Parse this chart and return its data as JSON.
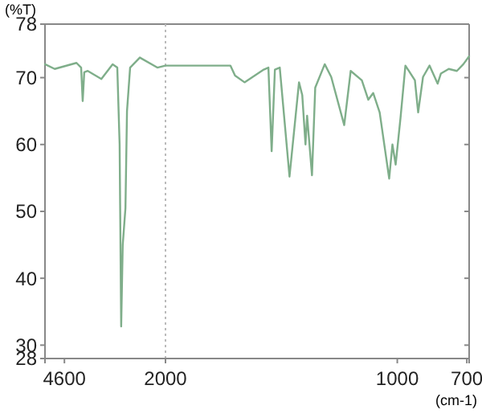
{
  "chart_data": [
    {
      "type": "line",
      "ylabel": "(%T)",
      "xlim": [
        5100,
        2000
      ],
      "xticks": [
        4600,
        2000
      ],
      "ylim": [
        28,
        78
      ],
      "yticks": [
        28,
        30,
        40,
        50,
        60,
        70,
        78
      ],
      "marker": "none",
      "line_style": "solid",
      "series": [
        {
          "color": "#7fae8a",
          "x": [
            5100,
            4850,
            4290,
            4170,
            4130,
            4090,
            4000,
            3650,
            3360,
            3240,
            3180,
            3140,
            3100,
            3030,
            2990,
            2910,
            2660,
            2210,
            2000
          ],
          "values": [
            72,
            71.3,
            72.2,
            71.5,
            66.5,
            70.8,
            71,
            69.8,
            72,
            71.5,
            60,
            32.8,
            45,
            50.5,
            65,
            71.5,
            73,
            71.5,
            71.8
          ]
        }
      ]
    },
    {
      "type": "line",
      "xlabel": "(cm-1)",
      "xlim": [
        2000,
        690
      ],
      "xticks": [
        {
          "value": 2000,
          "label": null
        },
        1000,
        700
      ],
      "ylim": [
        28,
        78
      ],
      "yticks": [
        28,
        30,
        40,
        50,
        60,
        70,
        78
      ],
      "tick_labels": "x",
      "marker": "none",
      "line_style": "solid",
      "ref_lines": [
        {
          "axis": "x",
          "value": 2000,
          "label": null,
          "color": "#bbbbbb",
          "line_style": "dotted"
        }
      ],
      "series": [
        {
          "color": "#7fae8a",
          "x": [
            2000,
            1720,
            1700,
            1659,
            1576,
            1556,
            1542,
            1528,
            1507,
            1465,
            1424,
            1410,
            1396,
            1389,
            1368,
            1354,
            1313,
            1285,
            1229,
            1201,
            1153,
            1125,
            1104,
            1076,
            1035,
            1021,
            1007,
            986,
            965,
            924,
            910,
            889,
            861,
            826,
            812,
            778,
            743,
            715,
            690
          ],
          "values": [
            71.8,
            71.8,
            70.3,
            69.3,
            71.2,
            71.5,
            59,
            71.2,
            71.5,
            55.2,
            69.3,
            67.4,
            60,
            64.3,
            55.4,
            68.5,
            72,
            70.1,
            62.9,
            71,
            69.6,
            66.7,
            67.7,
            64.8,
            54.9,
            60,
            57,
            64,
            71.8,
            69.6,
            64.8,
            70.1,
            71.8,
            69.1,
            70.6,
            71.3,
            71,
            72,
            73.2
          ]
        }
      ]
    }
  ]
}
